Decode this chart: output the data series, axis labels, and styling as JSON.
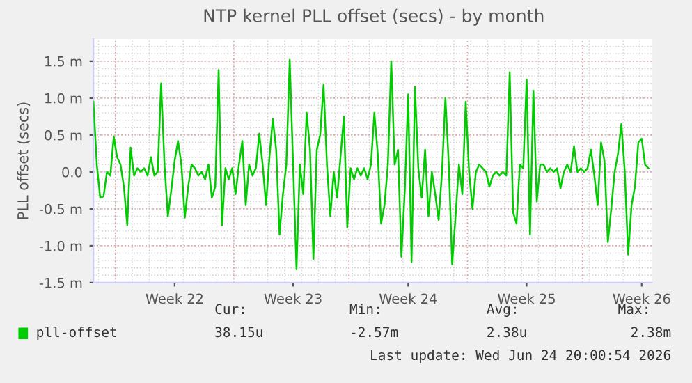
{
  "chart_data": {
    "type": "line",
    "title": "NTP kernel PLL offset (secs) - by month",
    "ylabel": "PLL offset (secs)",
    "categories": [
      null,
      null,
      null,
      null,
      null,
      null,
      null,
      null,
      null,
      null,
      null,
      null,
      null,
      null,
      null,
      null,
      null,
      null,
      null,
      null,
      null,
      null,
      null,
      null,
      "Week 22",
      null,
      null,
      null,
      null,
      null,
      null,
      null,
      null,
      null,
      null,
      null,
      null,
      null,
      null,
      null,
      null,
      null,
      null,
      null,
      null,
      null,
      null,
      null,
      null,
      null,
      null,
      null,
      null,
      null,
      null,
      null,
      null,
      null,
      null,
      "Week 23",
      null,
      null,
      null,
      null,
      null,
      null,
      null,
      null,
      null,
      null,
      null,
      null,
      null,
      null,
      null,
      null,
      null,
      null,
      null,
      null,
      null,
      null,
      null,
      null,
      null,
      null,
      null,
      null,
      null,
      null,
      null,
      null,
      null,
      "Week 24",
      null,
      null,
      null,
      null,
      null,
      null,
      null,
      null,
      null,
      null,
      null,
      null,
      null,
      null,
      null,
      null,
      null,
      null,
      null,
      null,
      null,
      null,
      null,
      null,
      null,
      null,
      null,
      null,
      null,
      null,
      null,
      null,
      null,
      null,
      "Week 25",
      null,
      null,
      null,
      null,
      null,
      null,
      null,
      null,
      null,
      null,
      null,
      null,
      null,
      null,
      null,
      null,
      null,
      null,
      null,
      null,
      null,
      null,
      null,
      null,
      null,
      null,
      null,
      null,
      null,
      null,
      null,
      null,
      null,
      "Week 26",
      null,
      null
    ],
    "series": [
      {
        "name": "pll-offset",
        "color": "#00cc00",
        "values": [
          0.95,
          0.1,
          -0.35,
          -0.33,
          0.0,
          -0.05,
          0.48,
          0.2,
          0.1,
          -0.2,
          -0.72,
          0.33,
          -0.05,
          0.05,
          0.0,
          0.05,
          -0.05,
          0.2,
          -0.05,
          0.0,
          1.2,
          0.1,
          -0.6,
          -0.25,
          0.15,
          0.42,
          0.1,
          -0.62,
          -0.2,
          0.1,
          0.05,
          -0.05,
          0.0,
          -0.1,
          0.1,
          -0.35,
          -0.2,
          1.38,
          -0.72,
          0.05,
          -0.1,
          0.05,
          -0.3,
          0.1,
          0.42,
          -0.45,
          0.1,
          -0.05,
          0.05,
          0.52,
          0.1,
          -0.45,
          0.2,
          0.72,
          0.3,
          -0.85,
          -0.3,
          0.1,
          1.52,
          0.1,
          -1.32,
          0.1,
          -0.3,
          0.8,
          0.3,
          -1.18,
          0.3,
          0.5,
          1.18,
          0.1,
          -0.6,
          0.0,
          -0.35,
          0.2,
          0.75,
          -0.75,
          0.05,
          -0.1,
          0.05,
          -0.05,
          0.05,
          -0.1,
          0.1,
          0.8,
          0.25,
          -0.7,
          -0.45,
          0.1,
          1.5,
          0.1,
          0.3,
          -1.15,
          -0.25,
          1.05,
          -1.22,
          1.15,
          0.05,
          -0.35,
          0.3,
          -0.6,
          0.0,
          -0.3,
          -0.65,
          0.0,
          1.0,
          0.1,
          -1.25,
          -0.6,
          0.1,
          -0.3,
          0.95,
          0.0,
          -0.5,
          0.0,
          0.1,
          0.05,
          0.0,
          -0.2,
          -0.05,
          0.0,
          -0.05,
          0.0,
          -0.05,
          1.35,
          -0.55,
          -0.7,
          0.1,
          0.05,
          1.25,
          -0.85,
          1.1,
          -0.4,
          0.1,
          0.1,
          0.0,
          0.05,
          0.0,
          0.05,
          -0.22,
          0.0,
          0.1,
          0.0,
          0.35,
          0.0,
          0.05,
          0.0,
          0.05,
          0.3,
          -0.05,
          -0.45,
          0.4,
          0.15,
          -0.95,
          -0.5,
          0.0,
          0.25,
          0.65,
          0.0,
          -1.12,
          -0.45,
          -0.2,
          0.4,
          0.45,
          0.1,
          0.05
        ]
      }
    ],
    "ylim": [
      -1.5,
      1.8
    ],
    "yticks": [
      {
        "value": -1.5,
        "label": "-1.5 m"
      },
      {
        "value": -1.0,
        "label": "-1.0 m"
      },
      {
        "value": -0.5,
        "label": "-0.5 m"
      },
      {
        "value": 0.0,
        "label": "0.0"
      },
      {
        "value": 0.5,
        "label": "0.5 m"
      },
      {
        "value": 1.0,
        "label": "1.0 m"
      },
      {
        "value": 1.5,
        "label": "1.5 m"
      }
    ],
    "grid": true,
    "legend": "bottom",
    "annotations": [
      "Cur:",
      "38.15u",
      "Min:",
      "-2.57m",
      "Avg:",
      "2.38u",
      "Max:",
      "2.38m",
      "Last update: Wed Jun 24 20:00:54 2026"
    ]
  }
}
